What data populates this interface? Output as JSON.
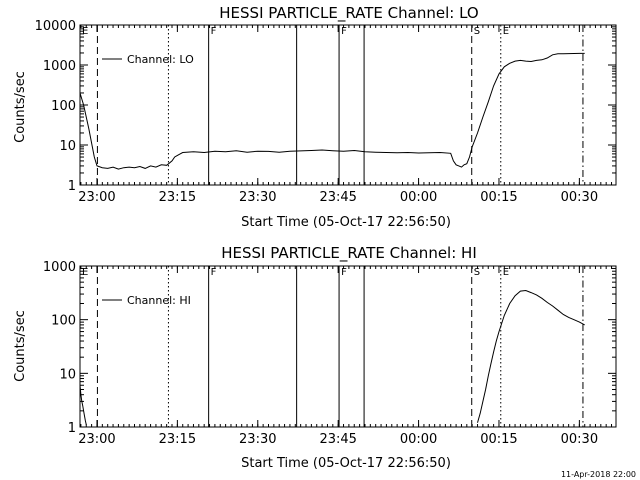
{
  "footer_text": "11-Apr-2018 22:00",
  "chart_data": [
    {
      "type": "line",
      "title": "HESSI PARTICLE_RATE Channel: LO",
      "xlabel": "Start Time (05-Oct-17 22:56:50)",
      "ylabel": "Counts/sec",
      "scale": "log",
      "xlim": [
        "22:56:50",
        "00:36:50"
      ],
      "ylim": [
        1,
        10000
      ],
      "x_ticks": [
        "23:00",
        "23:15",
        "23:30",
        "23:45",
        "00:00",
        "00:15",
        "00:30"
      ],
      "y_ticks": [
        "1",
        "10",
        "100",
        "1000",
        "10000"
      ],
      "legend_label": "Channel: LO",
      "legend_position": "top-left",
      "series": [
        {
          "name": "Channel: LO",
          "x": [
            "22:56:50",
            "22:57:30",
            "22:58:30",
            "22:59:30",
            "23:00:00",
            "23:01:00",
            "23:02:00",
            "23:03:00",
            "23:04:00",
            "23:05:00",
            "23:06:00",
            "23:07:00",
            "23:08:00",
            "23:09:00",
            "23:10:00",
            "23:11:00",
            "23:12:00",
            "23:13:00",
            "23:14:00",
            "23:14:30",
            "23:15:00",
            "23:15:30",
            "23:16:00",
            "23:18:00",
            "23:20:00",
            "23:22:00",
            "23:24:00",
            "23:26:00",
            "23:28:00",
            "23:30:00",
            "23:32:00",
            "23:34:00",
            "23:36:00",
            "23:38:00",
            "23:40:00",
            "23:42:00",
            "23:44:00",
            "23:46:00",
            "23:48:00",
            "23:50:00",
            "23:52:00",
            "23:54:00",
            "23:56:00",
            "23:58:00",
            "00:00:00",
            "00:02:00",
            "00:04:00",
            "00:06:00",
            "00:06:30",
            "00:07:00",
            "00:07:30",
            "00:08:00",
            "00:08:30",
            "00:09:00",
            "00:09:30",
            "00:10:00",
            "00:11:00",
            "00:12:00",
            "00:13:00",
            "00:14:00",
            "00:15:00",
            "00:16:00",
            "00:17:00",
            "00:18:00",
            "00:19:00",
            "00:20:00",
            "00:21:00",
            "00:22:00",
            "00:23:00",
            "00:24:00",
            "00:25:00",
            "00:26:00",
            "00:27:00",
            "00:28:00",
            "00:29:00",
            "00:30:00",
            "00:31:00"
          ],
          "values": [
            200,
            100,
            25,
            5,
            3,
            2.7,
            2.6,
            2.8,
            2.5,
            2.7,
            2.8,
            2.7,
            2.9,
            2.6,
            3,
            2.8,
            3.2,
            3.1,
            4,
            5,
            5.5,
            6,
            6.5,
            6.8,
            6.5,
            7,
            6.8,
            7.2,
            6.6,
            7,
            6.9,
            6.6,
            7,
            7.1,
            7.3,
            7.5,
            7.2,
            7,
            7.3,
            6.8,
            6.6,
            6.5,
            6.4,
            6.5,
            6.3,
            6.4,
            6.5,
            6.2,
            4,
            3.2,
            3,
            2.8,
            3.2,
            3.4,
            5,
            9,
            20,
            50,
            120,
            300,
            600,
            900,
            1100,
            1250,
            1300,
            1250,
            1220,
            1300,
            1350,
            1500,
            1800,
            1900,
            1920,
            1930,
            1940,
            1950,
            1950
          ]
        }
      ],
      "markers": [
        {
          "time": "22:56:50",
          "label": "E",
          "style": "solid"
        },
        {
          "time": "23:00:05",
          "label": "",
          "style": "dashed"
        },
        {
          "time": "23:13:20",
          "label": "",
          "style": "dotted"
        },
        {
          "time": "23:20:50",
          "label": "F",
          "style": "solid"
        },
        {
          "time": "23:37:15",
          "label": "",
          "style": "solid"
        },
        {
          "time": "23:45:10",
          "label": "F",
          "style": "solid"
        },
        {
          "time": "23:49:50",
          "label": "",
          "style": "solid"
        },
        {
          "time": "00:09:55",
          "label": "S",
          "style": "dashed"
        },
        {
          "time": "00:15:20",
          "label": "E",
          "style": "dotted"
        },
        {
          "time": "00:30:40",
          "label": "",
          "style": "dashdot"
        }
      ]
    },
    {
      "type": "line",
      "title": "HESSI PARTICLE_RATE Channel: HI",
      "xlabel": "Start Time (05-Oct-17 22:56:50)",
      "ylabel": "Counts/sec",
      "scale": "log",
      "xlim": [
        "22:56:50",
        "00:36:50"
      ],
      "ylim": [
        1,
        1000
      ],
      "x_ticks": [
        "23:00",
        "23:15",
        "23:30",
        "23:45",
        "00:00",
        "00:15",
        "00:30"
      ],
      "y_ticks": [
        "1",
        "10",
        "100",
        "1000"
      ],
      "legend_label": "Channel: HI",
      "legend_position": "top-left",
      "series": [
        {
          "name": "Channel: HI",
          "x": [
            "22:56:50",
            "22:57:00",
            "22:57:10",
            "22:57:20",
            "22:57:30",
            "22:57:40",
            "22:57:50",
            "22:58:00"
          ],
          "values": [
            6,
            4,
            3,
            2.5,
            2,
            1.6,
            1.3,
            1.1
          ]
        },
        {
          "name": "Channel: HI",
          "x": [
            "00:11:00",
            "00:11:30",
            "00:12:00",
            "00:12:30",
            "00:13:00",
            "00:13:30",
            "00:14:00",
            "00:14:30",
            "00:15:00",
            "00:16:00",
            "00:17:00",
            "00:18:00",
            "00:19:00",
            "00:20:00",
            "00:21:00",
            "00:22:00",
            "00:23:00",
            "00:24:00",
            "00:25:00",
            "00:26:00",
            "00:27:00",
            "00:28:00",
            "00:29:00",
            "00:30:00",
            "00:31:00"
          ],
          "values": [
            1.2,
            1.8,
            3,
            5,
            9,
            15,
            25,
            40,
            60,
            120,
            200,
            280,
            340,
            350,
            320,
            290,
            250,
            210,
            180,
            150,
            125,
            110,
            100,
            90,
            80
          ]
        }
      ],
      "markers": [
        {
          "time": "22:56:50",
          "label": "E",
          "style": "solid"
        },
        {
          "time": "23:00:05",
          "label": "",
          "style": "dashed"
        },
        {
          "time": "23:13:20",
          "label": "",
          "style": "dotted"
        },
        {
          "time": "23:20:50",
          "label": "F",
          "style": "solid"
        },
        {
          "time": "23:37:15",
          "label": "",
          "style": "solid"
        },
        {
          "time": "23:45:10",
          "label": "F",
          "style": "solid"
        },
        {
          "time": "23:49:50",
          "label": "",
          "style": "solid"
        },
        {
          "time": "00:09:55",
          "label": "S",
          "style": "dashed"
        },
        {
          "time": "00:15:20",
          "label": "E",
          "style": "dotted"
        },
        {
          "time": "00:30:40",
          "label": "",
          "style": "dashdot"
        }
      ]
    }
  ]
}
